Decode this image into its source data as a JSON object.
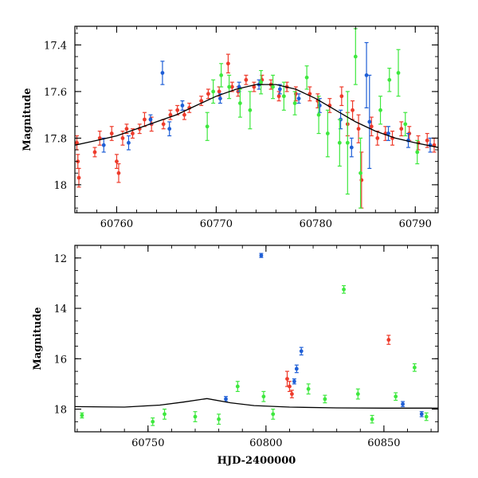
{
  "chart_data": [
    {
      "type": "scatter",
      "title": "",
      "xlabel": "",
      "ylabel": "Magnitude",
      "xlim": [
        60755.8,
        60792.3
      ],
      "ylim": [
        18.12,
        17.32
      ],
      "y_inverted": true,
      "x_ticks": [
        60760,
        60770,
        60780,
        60790
      ],
      "x_tick_labels": [
        "60760",
        "60770",
        "60780",
        "60790"
      ],
      "y_ticks": [
        17.4,
        17.6,
        17.8,
        18.0
      ],
      "y_tick_labels": [
        "17.4",
        "17.6",
        "17.8",
        "18"
      ],
      "grid": false,
      "colors": {
        "blue": "#1f5fd6",
        "red": "#ee3b2b",
        "green": "#3ee83e",
        "model": "#000000"
      },
      "model_curve": {
        "x": [
          60755.8,
          60758,
          60760,
          60762,
          60764,
          60766,
          60768,
          60770,
          60772,
          60774,
          60776,
          60778,
          60780,
          60782,
          60784,
          60786,
          60788,
          60790,
          60792.3
        ],
        "y": [
          17.83,
          17.81,
          17.79,
          17.76,
          17.73,
          17.7,
          17.66,
          17.62,
          17.59,
          17.57,
          17.57,
          17.59,
          17.63,
          17.68,
          17.73,
          17.77,
          17.8,
          17.82,
          17.84
        ]
      },
      "series": [
        {
          "color": "red",
          "points": [
            {
              "x": 60756.0,
              "y": 17.82,
              "err": 0.03
            },
            {
              "x": 60756.1,
              "y": 17.9,
              "err": 0.03
            },
            {
              "x": 60756.2,
              "y": 17.97,
              "err": 0.04
            },
            {
              "x": 60757.8,
              "y": 17.86,
              "err": 0.02
            },
            {
              "x": 60758.3,
              "y": 17.8,
              "err": 0.03
            },
            {
              "x": 60759.5,
              "y": 17.78,
              "err": 0.03
            },
            {
              "x": 60760.0,
              "y": 17.9,
              "err": 0.03
            },
            {
              "x": 60760.2,
              "y": 17.95,
              "err": 0.04
            },
            {
              "x": 60760.6,
              "y": 17.8,
              "err": 0.03
            },
            {
              "x": 60761.0,
              "y": 17.76,
              "err": 0.02
            },
            {
              "x": 60761.6,
              "y": 17.78,
              "err": 0.02
            },
            {
              "x": 60762.3,
              "y": 17.76,
              "err": 0.02
            },
            {
              "x": 60762.8,
              "y": 17.72,
              "err": 0.03
            },
            {
              "x": 60763.5,
              "y": 17.74,
              "err": 0.03
            },
            {
              "x": 60764.7,
              "y": 17.74,
              "err": 0.02
            },
            {
              "x": 60765.4,
              "y": 17.7,
              "err": 0.02
            },
            {
              "x": 60766.1,
              "y": 17.68,
              "err": 0.02
            },
            {
              "x": 60766.8,
              "y": 17.7,
              "err": 0.02
            },
            {
              "x": 60767.3,
              "y": 17.67,
              "err": 0.02
            },
            {
              "x": 60768.5,
              "y": 17.64,
              "err": 0.02
            },
            {
              "x": 60769.2,
              "y": 17.61,
              "err": 0.02
            },
            {
              "x": 60770.3,
              "y": 17.6,
              "err": 0.02
            },
            {
              "x": 60771.2,
              "y": 17.48,
              "err": 0.04
            },
            {
              "x": 60771.6,
              "y": 17.58,
              "err": 0.02
            },
            {
              "x": 60772.2,
              "y": 17.6,
              "err": 0.02
            },
            {
              "x": 60773.0,
              "y": 17.55,
              "err": 0.02
            },
            {
              "x": 60773.8,
              "y": 17.58,
              "err": 0.02
            },
            {
              "x": 60774.6,
              "y": 17.55,
              "err": 0.02
            },
            {
              "x": 60775.5,
              "y": 17.57,
              "err": 0.02
            },
            {
              "x": 60776.3,
              "y": 17.62,
              "err": 0.02
            },
            {
              "x": 60777.1,
              "y": 17.58,
              "err": 0.02
            },
            {
              "x": 60778.0,
              "y": 17.61,
              "err": 0.03
            },
            {
              "x": 60779.4,
              "y": 17.61,
              "err": 0.03
            },
            {
              "x": 60780.2,
              "y": 17.64,
              "err": 0.03
            },
            {
              "x": 60781.4,
              "y": 17.66,
              "err": 0.03
            },
            {
              "x": 60782.6,
              "y": 17.62,
              "err": 0.04
            },
            {
              "x": 60783.2,
              "y": 17.74,
              "err": 0.05
            },
            {
              "x": 60783.7,
              "y": 17.68,
              "err": 0.04
            },
            {
              "x": 60784.3,
              "y": 17.76,
              "err": 0.06
            },
            {
              "x": 60784.6,
              "y": 17.98,
              "err": 0.12
            },
            {
              "x": 60785.6,
              "y": 17.75,
              "err": 0.04
            },
            {
              "x": 60786.2,
              "y": 17.8,
              "err": 0.03
            },
            {
              "x": 60787.0,
              "y": 17.78,
              "err": 0.03
            },
            {
              "x": 60787.7,
              "y": 17.8,
              "err": 0.03
            },
            {
              "x": 60788.6,
              "y": 17.76,
              "err": 0.03
            },
            {
              "x": 60789.4,
              "y": 17.78,
              "err": 0.03
            },
            {
              "x": 60790.3,
              "y": 17.82,
              "err": 0.03
            },
            {
              "x": 60791.2,
              "y": 17.81,
              "err": 0.03
            },
            {
              "x": 60791.9,
              "y": 17.83,
              "err": 0.03
            }
          ]
        },
        {
          "color": "blue",
          "points": [
            {
              "x": 60758.7,
              "y": 17.83,
              "err": 0.03
            },
            {
              "x": 60761.2,
              "y": 17.82,
              "err": 0.03
            },
            {
              "x": 60763.4,
              "y": 17.72,
              "err": 0.02
            },
            {
              "x": 60764.6,
              "y": 17.52,
              "err": 0.05
            },
            {
              "x": 60765.3,
              "y": 17.76,
              "err": 0.03
            },
            {
              "x": 60766.6,
              "y": 17.66,
              "err": 0.02
            },
            {
              "x": 60770.4,
              "y": 17.63,
              "err": 0.02
            },
            {
              "x": 60772.3,
              "y": 17.58,
              "err": 0.02
            },
            {
              "x": 60774.3,
              "y": 17.57,
              "err": 0.02
            },
            {
              "x": 60776.4,
              "y": 17.59,
              "err": 0.02
            },
            {
              "x": 60778.3,
              "y": 17.63,
              "err": 0.02
            },
            {
              "x": 60780.4,
              "y": 17.66,
              "err": 0.03
            },
            {
              "x": 60782.5,
              "y": 17.72,
              "err": 0.04
            },
            {
              "x": 60783.6,
              "y": 17.84,
              "err": 0.04
            },
            {
              "x": 60785.1,
              "y": 17.53,
              "err": 0.14
            },
            {
              "x": 60785.4,
              "y": 17.73,
              "err": 0.2
            },
            {
              "x": 60787.3,
              "y": 17.78,
              "err": 0.03
            },
            {
              "x": 60789.3,
              "y": 17.81,
              "err": 0.03
            },
            {
              "x": 60791.5,
              "y": 17.83,
              "err": 0.03
            }
          ]
        },
        {
          "color": "green",
          "points": [
            {
              "x": 60769.1,
              "y": 17.75,
              "err": 0.06
            },
            {
              "x": 60769.7,
              "y": 17.6,
              "err": 0.05
            },
            {
              "x": 60770.5,
              "y": 17.53,
              "err": 0.05
            },
            {
              "x": 60771.3,
              "y": 17.58,
              "err": 0.05
            },
            {
              "x": 60772.4,
              "y": 17.65,
              "err": 0.06
            },
            {
              "x": 60773.4,
              "y": 17.68,
              "err": 0.08
            },
            {
              "x": 60774.5,
              "y": 17.56,
              "err": 0.05
            },
            {
              "x": 60775.7,
              "y": 17.58,
              "err": 0.05
            },
            {
              "x": 60776.8,
              "y": 17.62,
              "err": 0.06
            },
            {
              "x": 60777.9,
              "y": 17.65,
              "err": 0.05
            },
            {
              "x": 60779.1,
              "y": 17.54,
              "err": 0.05
            },
            {
              "x": 60780.3,
              "y": 17.7,
              "err": 0.08
            },
            {
              "x": 60781.2,
              "y": 17.78,
              "err": 0.1
            },
            {
              "x": 60782.4,
              "y": 17.82,
              "err": 0.1
            },
            {
              "x": 60783.2,
              "y": 17.82,
              "err": 0.22
            },
            {
              "x": 60784.0,
              "y": 17.45,
              "err": 0.12
            },
            {
              "x": 60784.5,
              "y": 17.95,
              "err": 0.15
            },
            {
              "x": 60786.5,
              "y": 17.68,
              "err": 0.06
            },
            {
              "x": 60787.4,
              "y": 17.55,
              "err": 0.05
            },
            {
              "x": 60788.3,
              "y": 17.52,
              "err": 0.1
            },
            {
              "x": 60789.0,
              "y": 17.74,
              "err": 0.05
            },
            {
              "x": 60790.2,
              "y": 17.86,
              "err": 0.05
            }
          ]
        }
      ]
    },
    {
      "type": "scatter",
      "title": "",
      "xlabel": "HJD-2400000",
      "ylabel": "Magnitude",
      "xlim": [
        60719,
        60873
      ],
      "ylim": [
        18.9,
        11.5
      ],
      "y_inverted": true,
      "x_ticks": [
        60750,
        60800,
        60850
      ],
      "x_tick_labels": [
        "60750",
        "60800",
        "60850"
      ],
      "y_ticks": [
        12,
        14,
        16,
        18
      ],
      "y_tick_labels": [
        "12",
        "14",
        "16",
        "18"
      ],
      "grid": false,
      "colors": {
        "blue": "#1f5fd6",
        "red": "#ee3b2b",
        "green": "#3ee83e",
        "model": "#000000"
      },
      "model_curve": {
        "x": [
          60719,
          60740,
          60755,
          60765,
          60775,
          60785,
          60795,
          60810,
          60830,
          60850,
          60873
        ],
        "y": [
          17.9,
          17.92,
          17.84,
          17.72,
          17.58,
          17.75,
          17.86,
          17.92,
          17.95,
          17.96,
          17.96
        ]
      },
      "series": [
        {
          "color": "blue",
          "points": [
            {
              "x": 60798,
              "y": 11.9,
              "err": 0.08
            },
            {
              "x": 60813,
              "y": 16.4,
              "err": 0.15
            },
            {
              "x": 60815,
              "y": 15.7,
              "err": 0.15
            },
            {
              "x": 60783,
              "y": 17.6,
              "err": 0.1
            },
            {
              "x": 60812,
              "y": 16.9,
              "err": 0.1
            },
            {
              "x": 60866,
              "y": 18.2,
              "err": 0.1
            },
            {
              "x": 60858,
              "y": 17.8,
              "err": 0.1
            }
          ]
        },
        {
          "color": "red",
          "points": [
            {
              "x": 60852,
              "y": 15.25,
              "err": 0.18
            },
            {
              "x": 60809,
              "y": 16.8,
              "err": 0.3
            },
            {
              "x": 60810,
              "y": 17.1,
              "err": 0.2
            },
            {
              "x": 60811,
              "y": 17.4,
              "err": 0.15
            }
          ]
        },
        {
          "color": "green",
          "points": [
            {
              "x": 60833,
              "y": 13.25,
              "err": 0.15
            },
            {
              "x": 60863,
              "y": 16.35,
              "err": 0.15
            },
            {
              "x": 60788,
              "y": 17.1,
              "err": 0.2
            },
            {
              "x": 60799,
              "y": 17.5,
              "err": 0.2
            },
            {
              "x": 60818,
              "y": 17.2,
              "err": 0.2
            },
            {
              "x": 60825,
              "y": 17.6,
              "err": 0.15
            },
            {
              "x": 60839,
              "y": 17.4,
              "err": 0.2
            },
            {
              "x": 60855,
              "y": 17.5,
              "err": 0.15
            },
            {
              "x": 60780,
              "y": 18.4,
              "err": 0.2
            },
            {
              "x": 60752,
              "y": 18.5,
              "err": 0.15
            },
            {
              "x": 60757,
              "y": 18.2,
              "err": 0.2
            },
            {
              "x": 60770,
              "y": 18.3,
              "err": 0.2
            },
            {
              "x": 60722,
              "y": 18.25,
              "err": 0.1
            },
            {
              "x": 60803,
              "y": 18.2,
              "err": 0.2
            },
            {
              "x": 60845,
              "y": 18.4,
              "err": 0.15
            },
            {
              "x": 60868,
              "y": 18.3,
              "err": 0.15
            }
          ]
        }
      ]
    }
  ]
}
